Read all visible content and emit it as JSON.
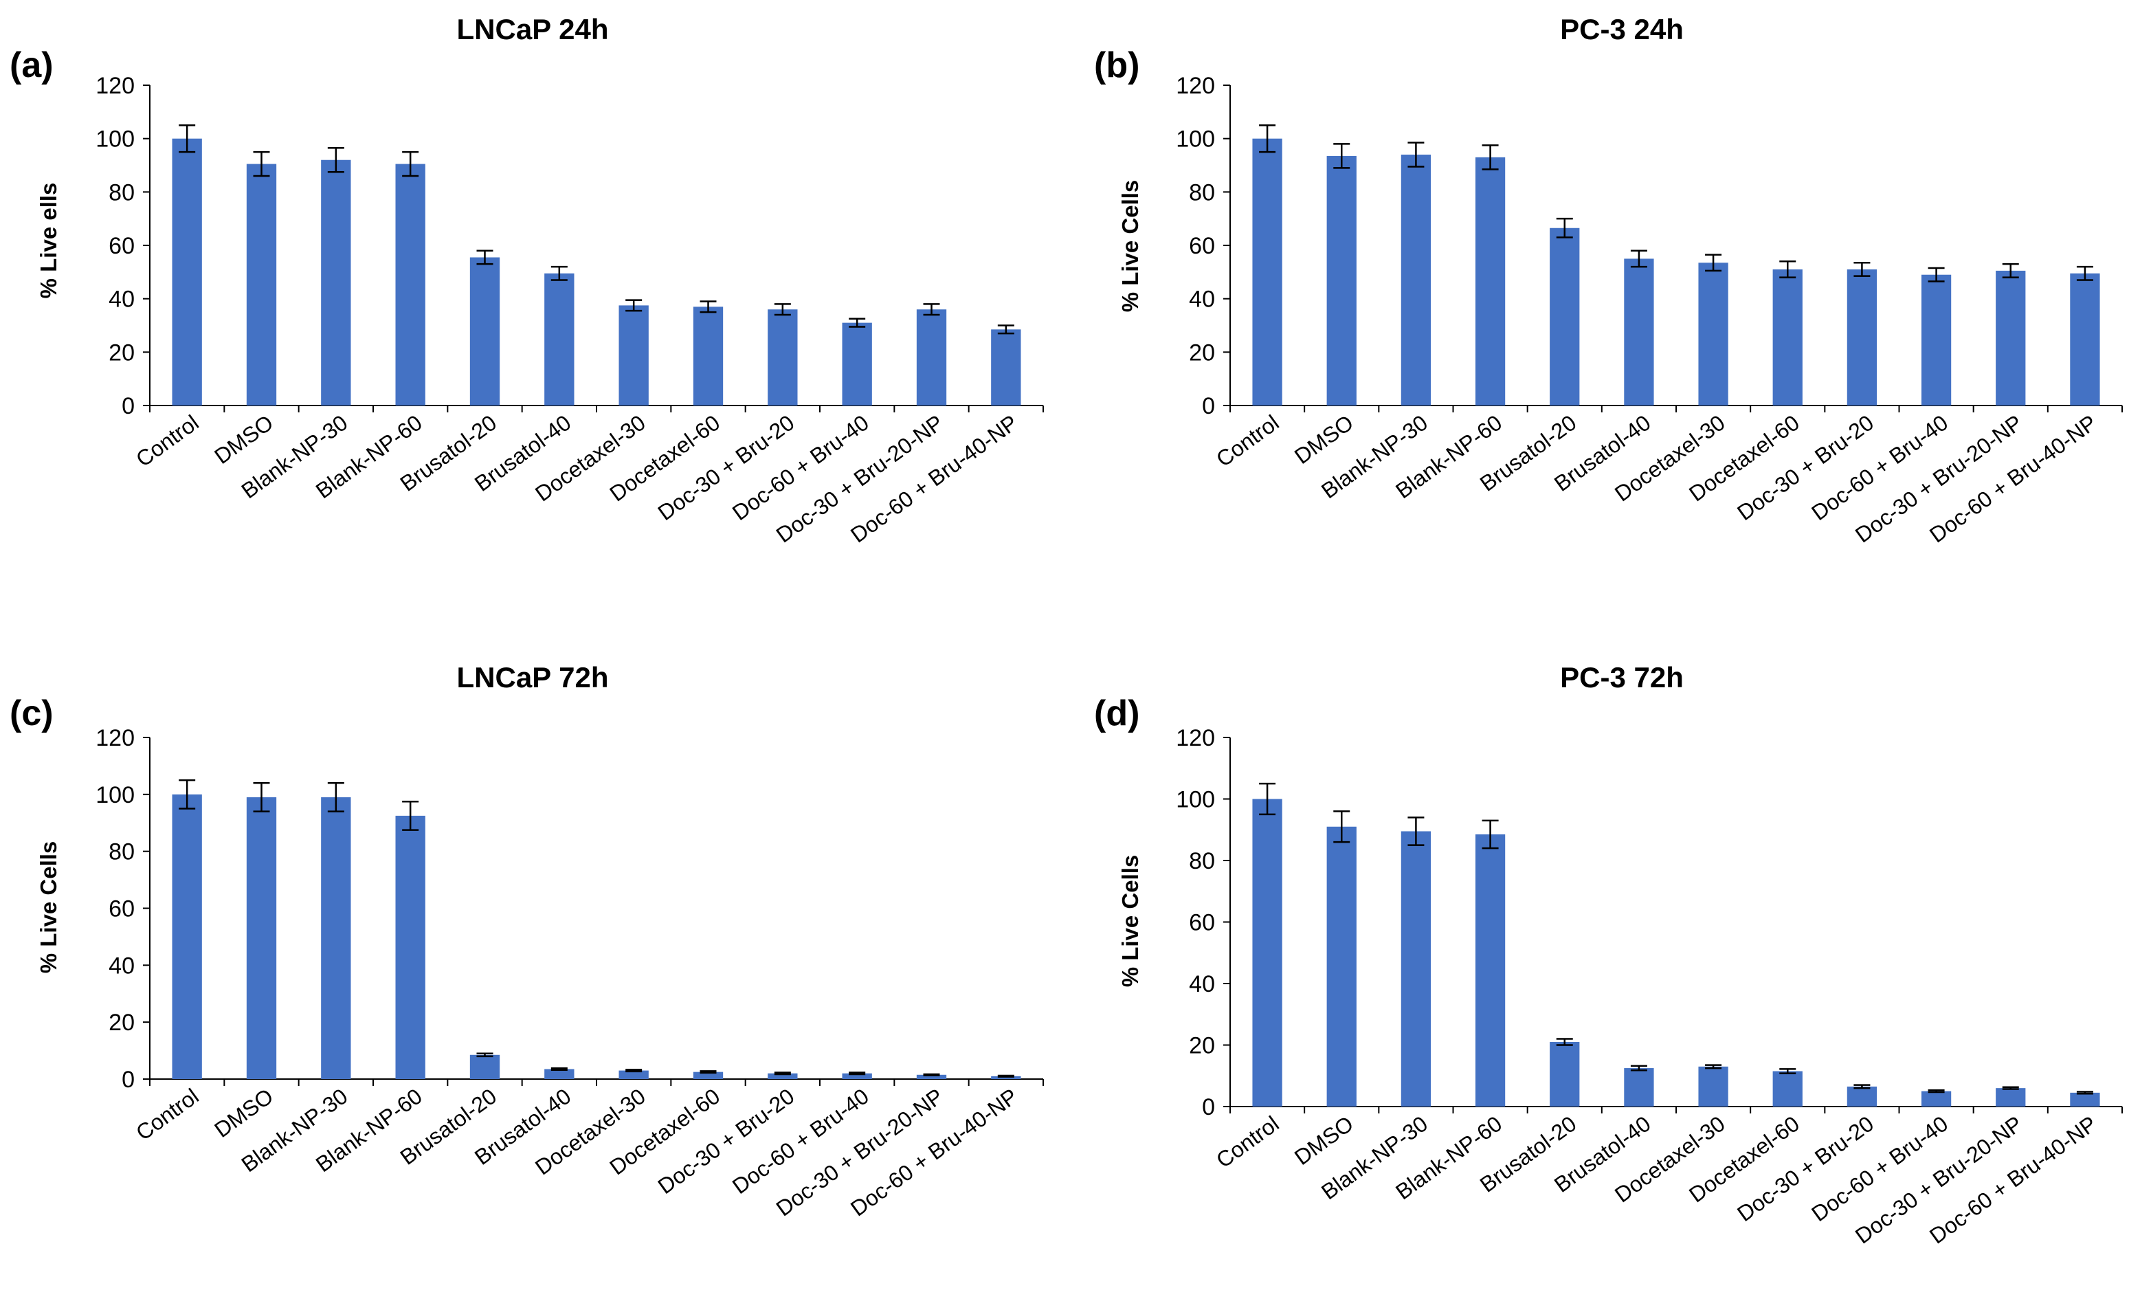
{
  "figure": {
    "bar_color": "#4472C4",
    "axis_color": "#000000"
  },
  "chart_data": [
    {
      "type": "bar",
      "label": "(a)",
      "title": "LNCaP 24h",
      "xlabel": "",
      "ylabel": "% Live ells",
      "ylim": [
        0,
        120
      ],
      "yticks": [
        0,
        20,
        40,
        60,
        80,
        100,
        120
      ],
      "categories": [
        "Control",
        "DMSO",
        "Blank-NP-30",
        "Blank-NP-60",
        "Brusatol-20",
        "Brusatol-40",
        "Docetaxel-30",
        "Docetaxel-60",
        "Doc-30 + Bru-20",
        "Doc-60 + Bru-40",
        "Doc-30 + Bru-20-NP",
        "Doc-60 + Bru-40-NP"
      ],
      "values": [
        100,
        90.5,
        92,
        90.5,
        55.5,
        49.5,
        37.5,
        37,
        36,
        31,
        36,
        28.5
      ],
      "errors": [
        5,
        4.5,
        4.5,
        4.5,
        2.5,
        2.5,
        2,
        2,
        2,
        1.5,
        2,
        1.5
      ]
    },
    {
      "type": "bar",
      "label": "(b)",
      "title": "PC-3 24h",
      "xlabel": "",
      "ylabel": "% Live Cells",
      "ylim": [
        0,
        120
      ],
      "yticks": [
        0,
        20,
        40,
        60,
        80,
        100,
        120
      ],
      "categories": [
        "Control",
        "DMSO",
        "Blank-NP-30",
        "Blank-NP-60",
        "Brusatol-20",
        "Brusatol-40",
        "Docetaxel-30",
        "Docetaxel-60",
        "Doc-30 + Bru-20",
        "Doc-60 + Bru-40",
        "Doc-30 + Bru-20-NP",
        "Doc-60 + Bru-40-NP"
      ],
      "values": [
        100,
        93.5,
        94,
        93,
        66.5,
        55,
        53.5,
        51,
        51,
        49,
        50.5,
        49.5
      ],
      "errors": [
        5,
        4.5,
        4.5,
        4.5,
        3.5,
        3,
        3,
        3,
        2.5,
        2.5,
        2.5,
        2.5
      ]
    },
    {
      "type": "bar",
      "label": "(c)",
      "title": "LNCaP 72h",
      "xlabel": "",
      "ylabel": "% Live Cells",
      "ylim": [
        0,
        120
      ],
      "yticks": [
        0,
        20,
        40,
        60,
        80,
        100,
        120
      ],
      "categories": [
        "Control",
        "DMSO",
        "Blank-NP-30",
        "Blank-NP-60",
        "Brusatol-20",
        "Brusatol-40",
        "Docetaxel-30",
        "Docetaxel-60",
        "Doc-30 + Bru-20",
        "Doc-60 + Bru-40",
        "Doc-30 + Bru-20-NP",
        "Doc-60 + Bru-40-NP"
      ],
      "values": [
        100,
        99,
        99,
        92.5,
        8.5,
        3.5,
        3,
        2.5,
        2,
        2,
        1.5,
        1
      ],
      "errors": [
        5,
        5,
        5,
        5,
        0.5,
        0.3,
        0.3,
        0.3,
        0.3,
        0.3,
        0.2,
        0.2
      ]
    },
    {
      "type": "bar",
      "label": "(d)",
      "title": "PC-3 72h",
      "xlabel": "",
      "ylabel": "% Live Cells",
      "ylim": [
        0,
        120
      ],
      "yticks": [
        0,
        20,
        40,
        60,
        80,
        100,
        120
      ],
      "categories": [
        "Control",
        "DMSO",
        "Blank-NP-30",
        "Blank-NP-60",
        "Brusatol-20",
        "Brusatol-40",
        "Docetaxel-30",
        "Docetaxel-60",
        "Doc-30 + Bru-20",
        "Doc-60 + Bru-40",
        "Doc-30 + Bru-20-NP",
        "Doc-60 + Bru-40-NP"
      ],
      "values": [
        100,
        91,
        89.5,
        88.5,
        21,
        12.5,
        13,
        11.5,
        6.5,
        5,
        6,
        4.5
      ],
      "errors": [
        5,
        5,
        4.5,
        4.5,
        1,
        0.7,
        0.5,
        0.7,
        0.5,
        0.3,
        0.3,
        0.3
      ]
    }
  ]
}
